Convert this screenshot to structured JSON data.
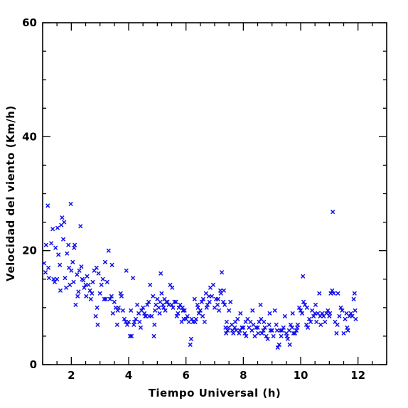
{
  "chart_data": {
    "type": "scatter",
    "title": "",
    "xlabel": "Tiempo Universal (h)",
    "ylabel": "Velocidad del viento (Km/h)",
    "xlim": [
      1,
      13
    ],
    "ylim": [
      0,
      60
    ],
    "x_ticks": [
      2,
      4,
      6,
      8,
      10,
      12
    ],
    "x_tick_labels": [
      "2",
      "4",
      "6",
      "8",
      "10",
      "12"
    ],
    "y_ticks": [
      0,
      20,
      40,
      60
    ],
    "y_tick_labels": [
      "0",
      "20",
      "40",
      "60"
    ],
    "x_minor_step": 0.5,
    "y_minor_step": 5,
    "grid": false,
    "marker": "x",
    "color": "#1010ee",
    "series": [
      {
        "points": [
          [
            1.05,
            17.8
          ],
          [
            1.1,
            16.2
          ],
          [
            1.12,
            21.0
          ],
          [
            1.18,
            27.9
          ],
          [
            1.2,
            17.0
          ],
          [
            1.22,
            15.2
          ],
          [
            1.3,
            21.3
          ],
          [
            1.35,
            23.8
          ],
          [
            1.38,
            15.0
          ],
          [
            1.42,
            14.5
          ],
          [
            1.45,
            20.5
          ],
          [
            1.5,
            15.0
          ],
          [
            1.52,
            24.0
          ],
          [
            1.55,
            19.3
          ],
          [
            1.6,
            17.5
          ],
          [
            1.62,
            13.0
          ],
          [
            1.65,
            24.5
          ],
          [
            1.68,
            25.8
          ],
          [
            1.72,
            22.0
          ],
          [
            1.75,
            25.0
          ],
          [
            1.78,
            15.2
          ],
          [
            1.82,
            13.5
          ],
          [
            1.85,
            19.5
          ],
          [
            1.9,
            21.0
          ],
          [
            1.92,
            17.0
          ],
          [
            1.95,
            14.0
          ],
          [
            1.98,
            28.2
          ],
          [
            2.0,
            16.5
          ],
          [
            2.05,
            18.0
          ],
          [
            2.08,
            14.5
          ],
          [
            2.1,
            20.5
          ],
          [
            2.12,
            21.0
          ],
          [
            2.15,
            10.5
          ],
          [
            2.2,
            15.8
          ],
          [
            2.22,
            12.0
          ],
          [
            2.25,
            12.8
          ],
          [
            2.28,
            16.5
          ],
          [
            2.32,
            24.3
          ],
          [
            2.35,
            17.2
          ],
          [
            2.38,
            15.0
          ],
          [
            2.42,
            14.8
          ],
          [
            2.45,
            13.5
          ],
          [
            2.5,
            14.0
          ],
          [
            2.52,
            12.0
          ],
          [
            2.55,
            15.5
          ],
          [
            2.6,
            14.0
          ],
          [
            2.65,
            13.0
          ],
          [
            2.68,
            11.5
          ],
          [
            2.72,
            12.5
          ],
          [
            2.75,
            14.5
          ],
          [
            2.8,
            16.5
          ],
          [
            2.85,
            8.5
          ],
          [
            2.88,
            17.0
          ],
          [
            2.9,
            10.0
          ],
          [
            2.92,
            7.0
          ],
          [
            2.95,
            16.0
          ],
          [
            3.0,
            12.5
          ],
          [
            3.05,
            14.0
          ],
          [
            3.1,
            15.0
          ],
          [
            3.15,
            11.5
          ],
          [
            3.18,
            18.0
          ],
          [
            3.2,
            11.5
          ],
          [
            3.25,
            14.5
          ],
          [
            3.3,
            20.0
          ],
          [
            3.35,
            11.5
          ],
          [
            3.4,
            12.0
          ],
          [
            3.42,
            17.5
          ],
          [
            3.45,
            9.0
          ],
          [
            3.5,
            11.0
          ],
          [
            3.55,
            10.0
          ],
          [
            3.6,
            7.0
          ],
          [
            3.62,
            9.5
          ],
          [
            3.65,
            10.0
          ],
          [
            3.72,
            12.5
          ],
          [
            3.75,
            12.0
          ],
          [
            3.8,
            9.5
          ],
          [
            3.85,
            8.0
          ],
          [
            3.9,
            7.5
          ],
          [
            3.92,
            16.5
          ],
          [
            3.95,
            7.0
          ],
          [
            4.0,
            7.5
          ],
          [
            4.05,
            5.0
          ],
          [
            4.08,
            9.5
          ],
          [
            4.1,
            5.0
          ],
          [
            4.15,
            15.2
          ],
          [
            4.18,
            7.0
          ],
          [
            4.2,
            7.5
          ],
          [
            4.25,
            8.0
          ],
          [
            4.3,
            10.5
          ],
          [
            4.35,
            9.0
          ],
          [
            4.38,
            7.5
          ],
          [
            4.42,
            6.5
          ],
          [
            4.45,
            9.5
          ],
          [
            4.5,
            10.0
          ],
          [
            4.55,
            9.0
          ],
          [
            4.58,
            8.5
          ],
          [
            4.6,
            8.5
          ],
          [
            4.65,
            10.5
          ],
          [
            4.7,
            11.0
          ],
          [
            4.72,
            8.5
          ],
          [
            4.75,
            14.0
          ],
          [
            4.8,
            8.5
          ],
          [
            4.85,
            12.0
          ],
          [
            4.88,
            5.0
          ],
          [
            4.9,
            7.0
          ],
          [
            4.92,
            9.5
          ],
          [
            4.95,
            10.5
          ],
          [
            5.0,
            11.5
          ],
          [
            5.05,
            10.0
          ],
          [
            5.08,
            9.0
          ],
          [
            5.1,
            11.0
          ],
          [
            5.12,
            16.0
          ],
          [
            5.15,
            12.5
          ],
          [
            5.2,
            10.5
          ],
          [
            5.22,
            10.0
          ],
          [
            5.25,
            11.5
          ],
          [
            5.28,
            9.5
          ],
          [
            5.32,
            11.0
          ],
          [
            5.35,
            11.0
          ],
          [
            5.4,
            10.5
          ],
          [
            5.45,
            14.0
          ],
          [
            5.5,
            10.5
          ],
          [
            5.52,
            13.5
          ],
          [
            5.55,
            10.0
          ],
          [
            5.6,
            11.0
          ],
          [
            5.65,
            11.0
          ],
          [
            5.68,
            8.5
          ],
          [
            5.72,
            9.0
          ],
          [
            5.75,
            10.0
          ],
          [
            5.8,
            10.5
          ],
          [
            5.85,
            7.5
          ],
          [
            5.88,
            10.0
          ],
          [
            5.9,
            9.5
          ],
          [
            5.92,
            8.0
          ],
          [
            5.95,
            9.5
          ],
          [
            6.0,
            8.0
          ],
          [
            6.05,
            8.5
          ],
          [
            6.1,
            7.5
          ],
          [
            6.15,
            3.5
          ],
          [
            6.18,
            4.5
          ],
          [
            6.2,
            8.0
          ],
          [
            6.25,
            7.5
          ],
          [
            6.3,
            11.5
          ],
          [
            6.32,
            7.5
          ],
          [
            6.35,
            8.0
          ],
          [
            6.4,
            10.5
          ],
          [
            6.42,
            10.0
          ],
          [
            6.45,
            9.0
          ],
          [
            6.5,
            9.5
          ],
          [
            6.55,
            11.0
          ],
          [
            6.58,
            8.5
          ],
          [
            6.6,
            11.5
          ],
          [
            6.65,
            7.5
          ],
          [
            6.7,
            12.5
          ],
          [
            6.72,
            10.0
          ],
          [
            6.75,
            10.5
          ],
          [
            6.8,
            12.0
          ],
          [
            6.82,
            11.0
          ],
          [
            6.85,
            13.5
          ],
          [
            6.9,
            12.0
          ],
          [
            6.95,
            14.0
          ],
          [
            7.0,
            10.0
          ],
          [
            7.05,
            11.5
          ],
          [
            7.1,
            10.5
          ],
          [
            7.12,
            11.5
          ],
          [
            7.15,
            9.5
          ],
          [
            7.2,
            13.0
          ],
          [
            7.22,
            12.5
          ],
          [
            7.25,
            16.2
          ],
          [
            7.3,
            11.0
          ],
          [
            7.32,
            13.0
          ],
          [
            7.35,
            10.5
          ],
          [
            7.38,
            6.5
          ],
          [
            7.4,
            5.5
          ],
          [
            7.42,
            7.5
          ],
          [
            7.45,
            6.0
          ],
          [
            7.48,
            6.5
          ],
          [
            7.5,
            9.5
          ],
          [
            7.55,
            11.0
          ],
          [
            7.6,
            7.0
          ],
          [
            7.62,
            6.0
          ],
          [
            7.65,
            5.5
          ],
          [
            7.7,
            6.5
          ],
          [
            7.72,
            7.5
          ],
          [
            7.75,
            6.0
          ],
          [
            7.8,
            8.0
          ],
          [
            7.85,
            5.5
          ],
          [
            7.88,
            6.0
          ],
          [
            7.9,
            9.0
          ],
          [
            7.95,
            6.5
          ],
          [
            8.0,
            6.5
          ],
          [
            8.05,
            5.5
          ],
          [
            8.08,
            7.5
          ],
          [
            8.1,
            5.0
          ],
          [
            8.15,
            8.0
          ],
          [
            8.2,
            6.5
          ],
          [
            8.25,
            7.5
          ],
          [
            8.3,
            6.0
          ],
          [
            8.32,
            9.5
          ],
          [
            8.35,
            7.0
          ],
          [
            8.4,
            5.0
          ],
          [
            8.45,
            6.5
          ],
          [
            8.5,
            6.5
          ],
          [
            8.52,
            5.5
          ],
          [
            8.55,
            7.5
          ],
          [
            8.6,
            10.5
          ],
          [
            8.62,
            8.0
          ],
          [
            8.65,
            5.5
          ],
          [
            8.7,
            6.0
          ],
          [
            8.72,
            7.5
          ],
          [
            8.75,
            6.5
          ],
          [
            8.8,
            5.0
          ],
          [
            8.85,
            4.5
          ],
          [
            8.9,
            7.0
          ],
          [
            8.92,
            9.0
          ],
          [
            8.95,
            6.0
          ],
          [
            9.0,
            6.0
          ],
          [
            9.05,
            5.0
          ],
          [
            9.1,
            9.5
          ],
          [
            9.15,
            7.0
          ],
          [
            9.18,
            6.0
          ],
          [
            9.2,
            3.0
          ],
          [
            9.25,
            3.5
          ],
          [
            9.3,
            6.0
          ],
          [
            9.32,
            5.0
          ],
          [
            9.35,
            6.0
          ],
          [
            9.4,
            6.5
          ],
          [
            9.45,
            8.5
          ],
          [
            9.5,
            5.5
          ],
          [
            9.52,
            5.0
          ],
          [
            9.55,
            4.5
          ],
          [
            9.6,
            6.0
          ],
          [
            9.62,
            3.5
          ],
          [
            9.65,
            7.0
          ],
          [
            9.7,
            6.5
          ],
          [
            9.72,
            9.0
          ],
          [
            9.75,
            5.5
          ],
          [
            9.8,
            5.5
          ],
          [
            9.85,
            6.0
          ],
          [
            9.88,
            6.5
          ],
          [
            9.9,
            7.0
          ],
          [
            9.95,
            10.0
          ],
          [
            10.0,
            9.5
          ],
          [
            10.05,
            9.0
          ],
          [
            10.08,
            15.5
          ],
          [
            10.1,
            11.0
          ],
          [
            10.15,
            10.5
          ],
          [
            10.2,
            7.0
          ],
          [
            10.22,
            10.0
          ],
          [
            10.25,
            6.5
          ],
          [
            10.3,
            8.0
          ],
          [
            10.35,
            7.5
          ],
          [
            10.4,
            9.5
          ],
          [
            10.45,
            8.5
          ],
          [
            10.5,
            9.0
          ],
          [
            10.52,
            10.5
          ],
          [
            10.55,
            7.5
          ],
          [
            10.6,
            9.0
          ],
          [
            10.65,
            12.5
          ],
          [
            10.68,
            8.5
          ],
          [
            10.7,
            7.0
          ],
          [
            10.75,
            9.0
          ],
          [
            10.8,
            8.5
          ],
          [
            10.85,
            7.5
          ],
          [
            10.9,
            9.0
          ],
          [
            10.95,
            9.5
          ],
          [
            11.0,
            8.5
          ],
          [
            11.02,
            9.0
          ],
          [
            11.05,
            12.5
          ],
          [
            11.1,
            13.0
          ],
          [
            11.12,
            26.8
          ],
          [
            11.15,
            12.5
          ],
          [
            11.2,
            7.5
          ],
          [
            11.25,
            5.5
          ],
          [
            11.28,
            7.0
          ],
          [
            11.3,
            12.5
          ],
          [
            11.35,
            8.5
          ],
          [
            11.4,
            10.0
          ],
          [
            11.45,
            9.5
          ],
          [
            11.5,
            5.5
          ],
          [
            11.55,
            8.0
          ],
          [
            11.6,
            9.0
          ],
          [
            11.62,
            6.5
          ],
          [
            11.65,
            6.0
          ],
          [
            11.7,
            8.5
          ],
          [
            11.75,
            9.0
          ],
          [
            11.8,
            8.5
          ],
          [
            11.85,
            11.5
          ],
          [
            11.88,
            12.5
          ],
          [
            11.9,
            9.5
          ],
          [
            11.92,
            8.0
          ]
        ]
      }
    ]
  }
}
